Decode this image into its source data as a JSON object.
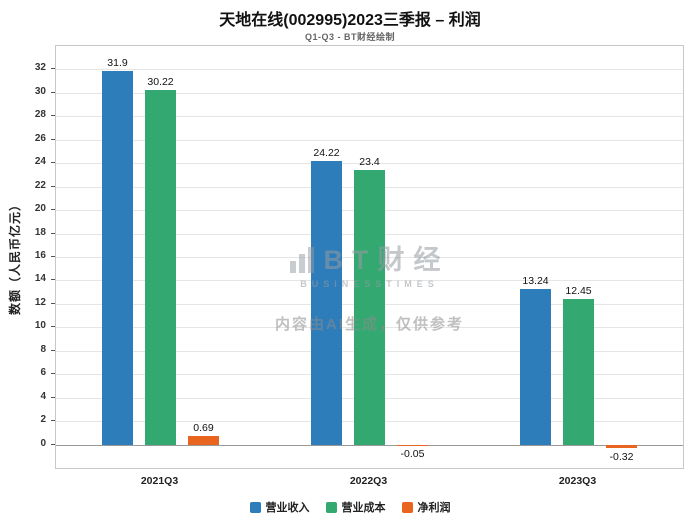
{
  "chart_data": {
    "type": "bar",
    "title": "天地在线(002995)2023三季报 – 利润",
    "subtitle": "Q1-Q3 - BT财经绘制",
    "categories": [
      "2021Q3",
      "2022Q3",
      "2023Q3"
    ],
    "series": [
      {
        "name": "营业收入",
        "color": "#2d7dbb",
        "values": [
          31.9,
          24.22,
          13.24
        ]
      },
      {
        "name": "营业成本",
        "color": "#34a871",
        "values": [
          30.22,
          23.4,
          12.45
        ]
      },
      {
        "name": "净利润",
        "color": "#e8641f",
        "values": [
          0.69,
          -0.05,
          -0.32
        ]
      }
    ],
    "xlabel": "",
    "ylabel": "数额（人民币亿元）",
    "ylim": [
      -2,
      34
    ],
    "yticks": [
      0,
      2,
      4,
      6,
      8,
      10,
      12,
      14,
      16,
      18,
      20,
      22,
      24,
      26,
      28,
      30,
      32
    ],
    "grid": true,
    "legend_position": "bottom"
  },
  "watermark": {
    "logo_text": "BT财经",
    "logo_sub": "BUSINESSTIMES",
    "disclaimer": "内容由AI生成，仅供参考"
  }
}
